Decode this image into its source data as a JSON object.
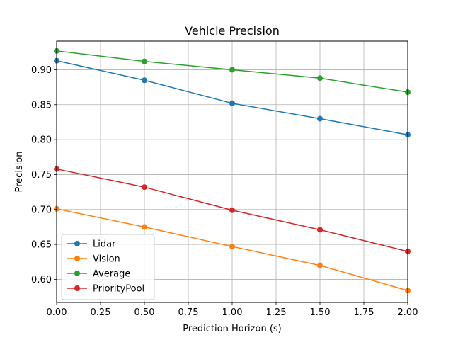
{
  "chart_data": {
    "type": "line",
    "title": "Vehicle Precision",
    "xlabel": "Prediction Horizon (s)",
    "ylabel": "Precision",
    "x": [
      0.0,
      0.5,
      1.0,
      1.5,
      2.0
    ],
    "xlim": [
      0.0,
      2.0
    ],
    "ylim": [
      0.567,
      0.941
    ],
    "xticks": [
      0.0,
      0.25,
      0.5,
      0.75,
      1.0,
      1.25,
      1.5,
      1.75,
      2.0
    ],
    "xtick_labels": [
      "0.00",
      "0.25",
      "0.50",
      "0.75",
      "1.00",
      "1.25",
      "1.50",
      "1.75",
      "2.00"
    ],
    "yticks": [
      0.6,
      0.65,
      0.7,
      0.75,
      0.8,
      0.85,
      0.9
    ],
    "ytick_labels": [
      "0.60",
      "0.65",
      "0.70",
      "0.75",
      "0.80",
      "0.85",
      "0.90"
    ],
    "grid": true,
    "legend_position": "lower-left",
    "series": [
      {
        "name": "Lidar",
        "color": "#1f77b4",
        "values": [
          0.913,
          0.885,
          0.852,
          0.83,
          0.807
        ]
      },
      {
        "name": "Vision",
        "color": "#ff7f0e",
        "values": [
          0.701,
          0.675,
          0.647,
          0.62,
          0.584
        ]
      },
      {
        "name": "Average",
        "color": "#2ca02c",
        "values": [
          0.927,
          0.912,
          0.9,
          0.888,
          0.868
        ]
      },
      {
        "name": "PriorityPool",
        "color": "#d62728",
        "values": [
          0.758,
          0.732,
          0.699,
          0.671,
          0.64
        ]
      }
    ]
  }
}
